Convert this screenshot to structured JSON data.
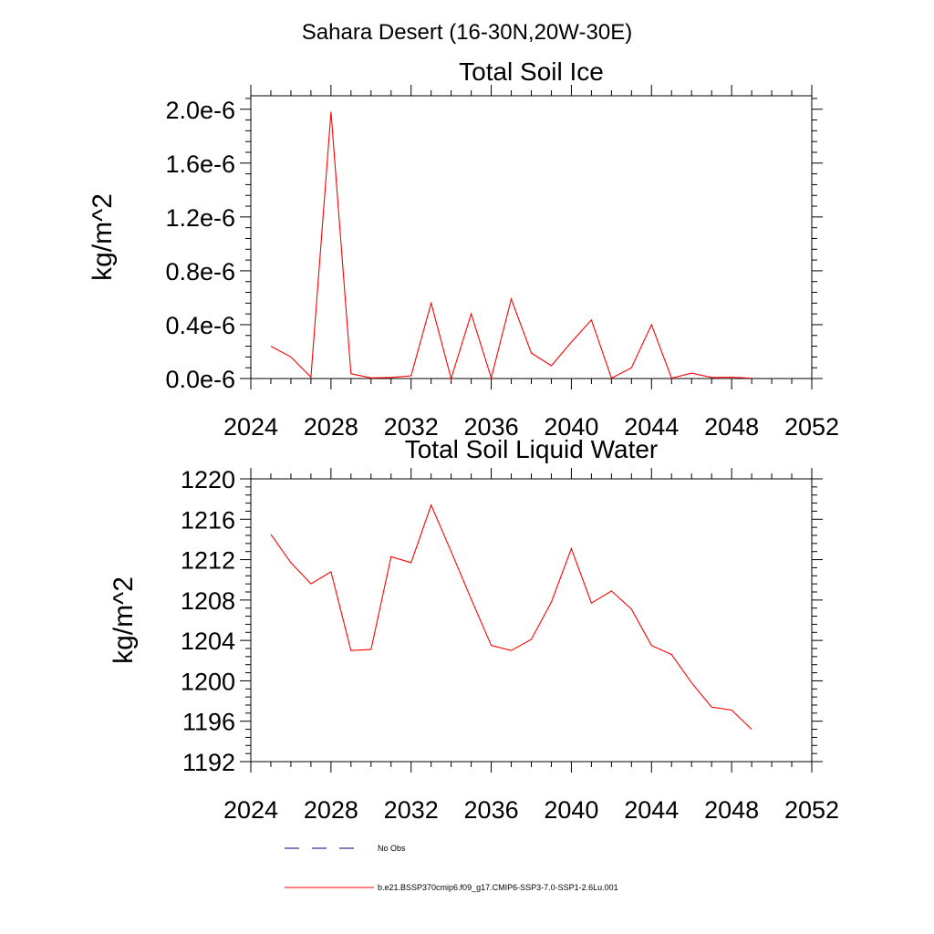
{
  "page_title": "Sahara Desert (16-30N,20W-30E)",
  "chart_data": [
    {
      "type": "line",
      "title": "Total Soil Ice",
      "ylabel": "kg/m^2",
      "xlabel": "",
      "xlim": [
        2024,
        2052
      ],
      "ylim": [
        0,
        2.1e-06
      ],
      "xticks": [
        2024,
        2028,
        2032,
        2036,
        2040,
        2044,
        2048,
        2052
      ],
      "xtick_labels": [
        "2024",
        "2028",
        "2032",
        "2036",
        "2040",
        "2044",
        "2048",
        "2052"
      ],
      "yticks": [
        0,
        4e-07,
        8e-07,
        1.2e-06,
        1.6e-06,
        2e-06
      ],
      "ytick_labels": [
        "0.0e-6",
        "0.4e-6",
        "0.8e-6",
        "1.2e-6",
        "1.6e-6",
        "2.0e-6"
      ],
      "grid": false,
      "series": [
        {
          "name": "b.e21.BSSP370cmip6.f09_g17.CMIP6-SSP3-7.0-SSP1-2.6Lu.001",
          "color": "#ff0000",
          "x": [
            2025,
            2026,
            2027,
            2028,
            2029,
            2030,
            2031,
            2032,
            2033,
            2034,
            2035,
            2036,
            2037,
            2038,
            2039,
            2040,
            2041,
            2042,
            2043,
            2044,
            2045,
            2046,
            2047,
            2048,
            2049
          ],
          "values": [
            2.4e-07,
            1.6e-07,
            1e-08,
            1.98e-06,
            3.5e-08,
            5e-09,
            8e-09,
            2e-08,
            5.6e-07,
            0.0,
            4.8e-07,
            5e-09,
            5.9e-07,
            1.9e-07,
            9.5e-08,
            2.7e-07,
            4.35e-07,
            3e-09,
            8e-08,
            4e-07,
            3e-09,
            4e-08,
            8e-09,
            1e-08,
            2e-09
          ]
        }
      ]
    },
    {
      "type": "line",
      "title": "Total Soil Liquid Water",
      "ylabel": "kg/m^2",
      "xlabel": "",
      "xlim": [
        2024,
        2052
      ],
      "ylim": [
        1192,
        1220
      ],
      "xticks": [
        2024,
        2028,
        2032,
        2036,
        2040,
        2044,
        2048,
        2052
      ],
      "xtick_labels": [
        "2024",
        "2028",
        "2032",
        "2036",
        "2040",
        "2044",
        "2048",
        "2052"
      ],
      "yticks": [
        1192,
        1196,
        1200,
        1204,
        1208,
        1212,
        1216,
        1220
      ],
      "ytick_labels": [
        "1192",
        "1196",
        "1200",
        "1204",
        "1208",
        "1212",
        "1216",
        "1220"
      ],
      "grid": false,
      "series": [
        {
          "name": "b.e21.BSSP370cmip6.f09_g17.CMIP6-SSP3-7.0-SSP1-2.6Lu.001",
          "color": "#ff0000",
          "x": [
            2025,
            2026,
            2027,
            2028,
            2029,
            2030,
            2031,
            2032,
            2033,
            2034,
            2035,
            2036,
            2037,
            2038,
            2039,
            2040,
            2041,
            2042,
            2043,
            2044,
            2045,
            2046,
            2047,
            2048,
            2049
          ],
          "values": [
            1214.5,
            1211.7,
            1209.6,
            1210.8,
            1203.0,
            1203.1,
            1212.3,
            1211.7,
            1217.4,
            1212.8,
            1208.1,
            1203.5,
            1203.0,
            1204.1,
            1207.8,
            1213.1,
            1207.7,
            1208.9,
            1207.1,
            1203.5,
            1202.6,
            1199.8,
            1197.4,
            1197.1,
            1195.2
          ]
        }
      ]
    }
  ],
  "legend": [
    {
      "label": "No Obs",
      "color": "#000080",
      "style": "dashed"
    },
    {
      "label": "b.e21.BSSP370cmip6.f09_g17.CMIP6-SSP3-7.0-SSP1-2.6Lu.001",
      "color": "#ff0000",
      "style": "solid"
    }
  ]
}
